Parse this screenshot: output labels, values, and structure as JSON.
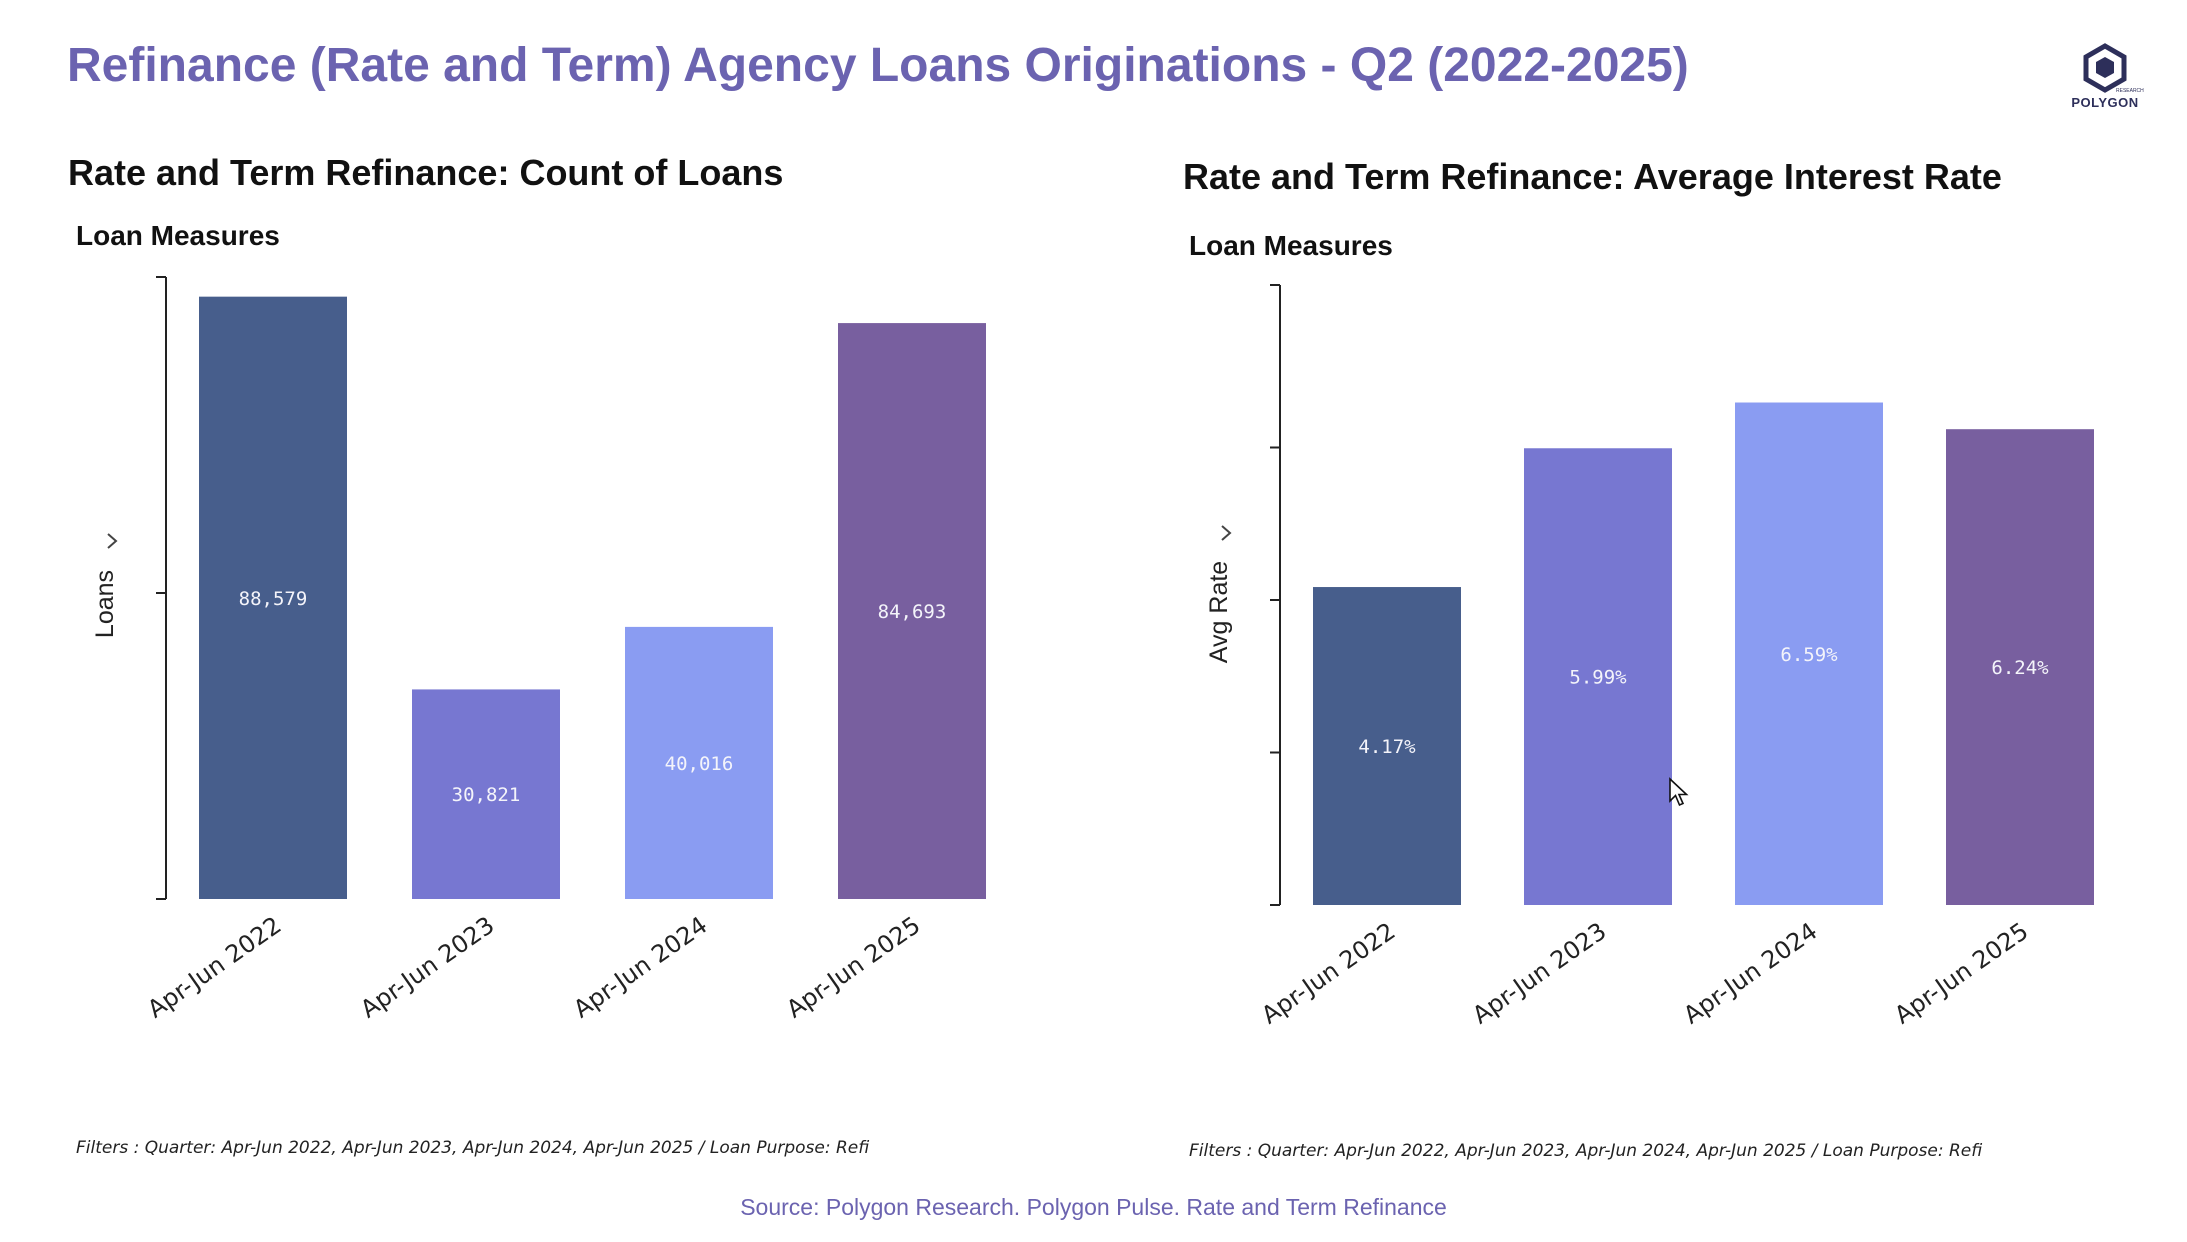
{
  "page": {
    "title": "Refinance (Rate and Term) Agency Loans Originations - Q2 (2022-2025)",
    "logo_text": "POLYGON",
    "logo_subtext": "RESEARCH",
    "source": "Source: Polygon Research. Polygon Pulse. Rate and Term Refinance"
  },
  "colors": {
    "title": "#6b63b0",
    "bars": [
      "#475e8c",
      "#7777d1",
      "#8a9cf2",
      "#785f9f"
    ]
  },
  "charts": {
    "left": {
      "heading": "Rate and Term Refinance: Count of Loans",
      "measures_label": "Loan Measures",
      "axis_label": "Loans",
      "filters": "Filters : Quarter: Apr-Jun 2022, Apr-Jun 2023, Apr-Jun 2024, Apr-Jun 2025 / Loan Purpose: Refi"
    },
    "right": {
      "heading": "Rate and Term Refinance: Average Interest Rate",
      "measures_label": "Loan Measures",
      "axis_label": "Avg Rate",
      "filters": "Filters : Quarter: Apr-Jun 2022, Apr-Jun 2023, Apr-Jun 2024, Apr-Jun 2025 / Loan Purpose: Refi"
    }
  },
  "chart_data": [
    {
      "type": "bar",
      "title": "Rate and Term Refinance: Count of Loans",
      "ylabel": "Loans",
      "categories": [
        "Apr-Jun 2022",
        "Apr-Jun 2023",
        "Apr-Jun 2024",
        "Apr-Jun 2025"
      ],
      "values": [
        88579,
        30821,
        40016,
        84693
      ],
      "labels": [
        "88,579",
        "30,821",
        "40,016",
        "84,693"
      ],
      "ylim": [
        0,
        90000
      ],
      "grid": false,
      "legend": "none"
    },
    {
      "type": "bar",
      "title": "Rate and Term Refinance: Average Interest Rate",
      "ylabel": "Avg Rate",
      "categories": [
        "Apr-Jun 2022",
        "Apr-Jun 2023",
        "Apr-Jun 2024",
        "Apr-Jun 2025"
      ],
      "values": [
        4.17,
        5.99,
        6.59,
        6.24
      ],
      "labels": [
        "4.17%",
        "5.99%",
        "6.59%",
        "6.24%"
      ],
      "ylim": [
        0,
        8
      ],
      "grid": false,
      "legend": "none"
    }
  ]
}
